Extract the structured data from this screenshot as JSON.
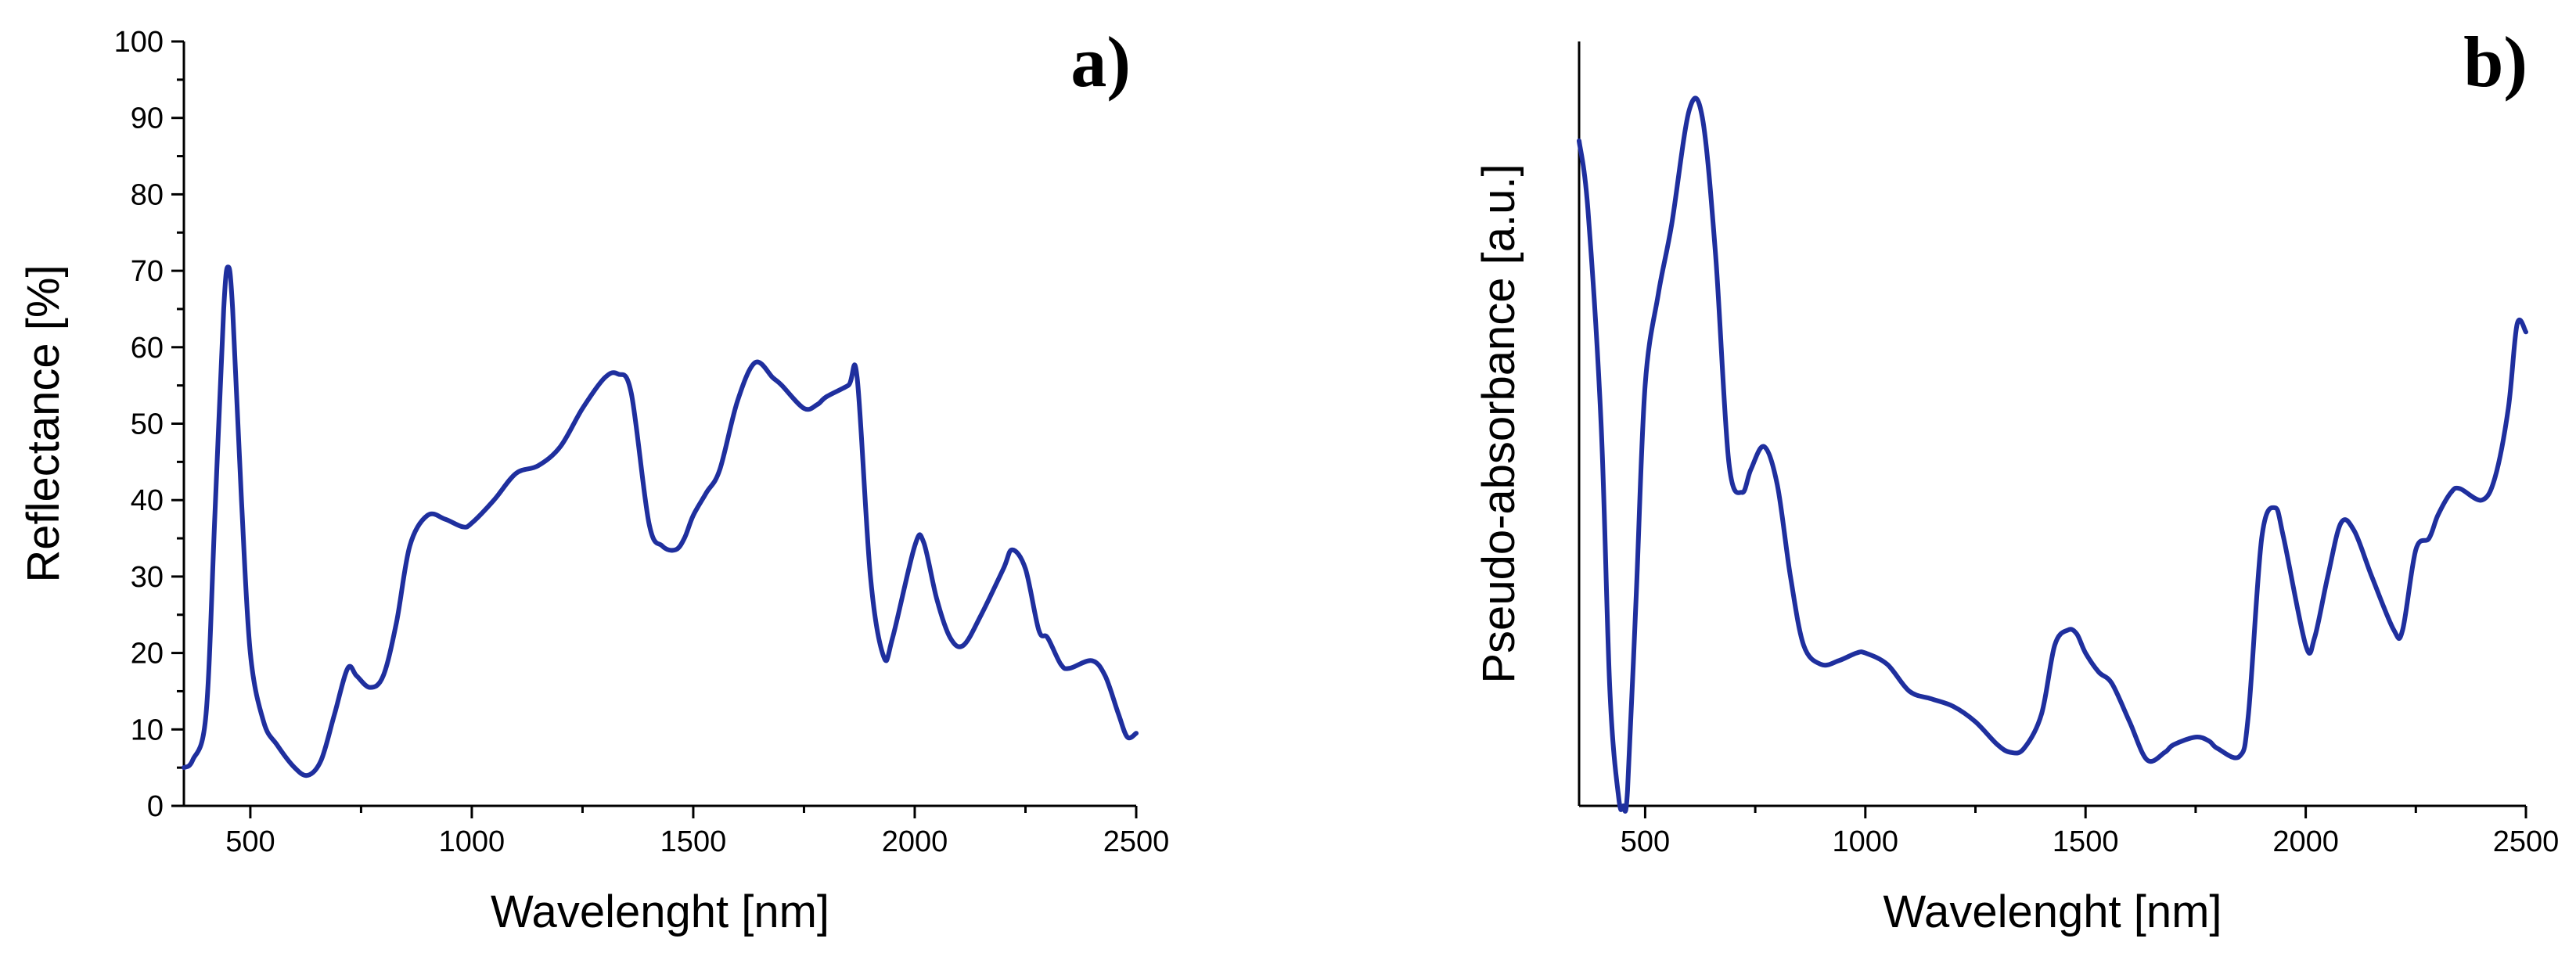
{
  "chart_data": [
    {
      "type": "line",
      "panel_label": "a)",
      "xlabel": "Wavelenght [nm]",
      "ylabel": "Reflectance [%]",
      "xlim": [
        350,
        2500
      ],
      "ylim": [
        0,
        100
      ],
      "xticks": [
        500,
        1000,
        1500,
        2000,
        2500
      ],
      "yticks": [
        0,
        10,
        20,
        30,
        40,
        50,
        60,
        70,
        80,
        90,
        100
      ],
      "color": "#1f2f9e",
      "series": [
        {
          "x": [
            350,
            370,
            400,
            420,
            440,
            450,
            460,
            480,
            500,
            530,
            560,
            600,
            630,
            660,
            690,
            720,
            740,
            770,
            800,
            830,
            860,
            900,
            940,
            980,
            1000,
            1050,
            1100,
            1150,
            1200,
            1250,
            1300,
            1330,
            1360,
            1400,
            1430,
            1460,
            1480,
            1500,
            1530,
            1560,
            1600,
            1640,
            1680,
            1700,
            1750,
            1780,
            1800,
            1850,
            1870,
            1900,
            1930,
            1950,
            2000,
            2020,
            2050,
            2080,
            2110,
            2150,
            2200,
            2220,
            2250,
            2280,
            2300,
            2330,
            2350,
            2400,
            2430,
            2460,
            2480,
            2500
          ],
          "y": [
            5,
            6,
            12,
            38,
            65,
            70.5,
            65,
            40,
            20,
            11,
            8,
            5,
            4,
            6,
            12,
            18,
            17,
            15.5,
            17,
            24,
            34,
            38,
            37.5,
            36.5,
            37,
            40,
            43.5,
            44.5,
            47,
            52,
            56,
            56.5,
            54,
            37,
            34,
            33.5,
            35,
            38,
            41,
            44,
            53,
            58,
            56,
            55,
            52,
            52.5,
            53.5,
            55,
            56,
            30,
            19.5,
            22,
            34,
            34.5,
            27,
            22,
            21,
            25,
            31,
            33.5,
            31,
            23,
            22,
            18.5,
            18,
            19,
            17,
            12,
            9,
            9.5
          ]
        }
      ]
    },
    {
      "type": "line",
      "panel_label": "b)",
      "xlabel": "Wavelenght [nm]",
      "ylabel": "Pseudo-absorbance [a.u.]",
      "xlim": [
        350,
        2500
      ],
      "ylim": [
        0,
        100
      ],
      "xticks": [
        500,
        1000,
        1500,
        2000,
        2500
      ],
      "yticks": [],
      "color": "#1f2f9e",
      "series": [
        {
          "x": [
            350,
            370,
            400,
            420,
            440,
            450,
            460,
            480,
            500,
            530,
            560,
            600,
            630,
            660,
            690,
            720,
            740,
            770,
            800,
            830,
            860,
            900,
            940,
            980,
            1000,
            1050,
            1100,
            1150,
            1200,
            1250,
            1300,
            1330,
            1360,
            1400,
            1430,
            1460,
            1480,
            1500,
            1530,
            1560,
            1600,
            1640,
            1680,
            1700,
            1750,
            1780,
            1800,
            1850,
            1870,
            1900,
            1930,
            1950,
            2000,
            2020,
            2050,
            2080,
            2110,
            2150,
            2200,
            2220,
            2250,
            2280,
            2300,
            2330,
            2350,
            2400,
            2430,
            2460,
            2480,
            2500
          ],
          "y": [
            87,
            78,
            50,
            15,
            1,
            0,
            2,
            28,
            55,
            67,
            76,
            91,
            90,
            72,
            45,
            41,
            44,
            47,
            42,
            30,
            21,
            18.5,
            19,
            20,
            20,
            18.5,
            15,
            14,
            13,
            11,
            8,
            7,
            7.5,
            12,
            21,
            23,
            22.5,
            20,
            17.5,
            16,
            11,
            6,
            7,
            8,
            9,
            8.5,
            7.5,
            6.5,
            12,
            35,
            39,
            35,
            21,
            22,
            30,
            37,
            36,
            30,
            23,
            23,
            33.5,
            35,
            38,
            41,
            41.5,
            40,
            43,
            52,
            63,
            62
          ]
        }
      ]
    }
  ]
}
